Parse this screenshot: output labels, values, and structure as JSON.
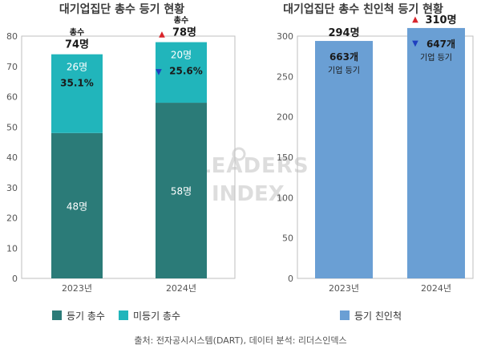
{
  "chart_data": [
    {
      "type": "bar",
      "stacked": true,
      "title": "대기업집단 총수 등기 현황",
      "categories": [
        "2023년",
        "2024년"
      ],
      "series": [
        {
          "name": "등기 총수",
          "values": [
            48,
            58
          ],
          "labels": [
            "48명",
            "58명"
          ],
          "color": "#2b7b78"
        },
        {
          "name": "미등기 총수",
          "values": [
            26,
            20
          ],
          "labels": [
            "26명",
            "20명"
          ],
          "color": "#21b5bb"
        }
      ],
      "totals": [
        {
          "prefix": "총수",
          "value": "74명",
          "trend": ""
        },
        {
          "prefix": "총수",
          "value": "78명",
          "trend": "▲"
        }
      ],
      "unregistered_share": [
        {
          "value": "35.1%",
          "trend": ""
        },
        {
          "value": "25.6%",
          "trend": "▼"
        }
      ],
      "ylim": [
        0,
        80
      ],
      "yticks": [
        0,
        10,
        20,
        30,
        40,
        50,
        60,
        70,
        80
      ],
      "grid": false,
      "legend_position": "bottom"
    },
    {
      "type": "bar",
      "title": "대기업집단 총수 친인척 등기 현황",
      "categories": [
        "2023년",
        "2024년"
      ],
      "series": [
        {
          "name": "등기 친인척",
          "values": [
            294,
            310
          ],
          "color": "#6a9fd4"
        }
      ],
      "value_labels": [
        {
          "value": "294명",
          "trend": ""
        },
        {
          "value": "310명",
          "trend": "▲"
        }
      ],
      "inner_labels": [
        {
          "count": "663개",
          "caption": "기업 등기",
          "trend": ""
        },
        {
          "count": "647개",
          "caption": "기업 등기",
          "trend": "▼"
        }
      ],
      "ylim": [
        0,
        300
      ],
      "yticks": [
        0,
        50,
        100,
        150,
        200,
        250,
        300
      ],
      "grid": false,
      "legend_position": "bottom"
    }
  ],
  "colors": {
    "up": "#d9242b",
    "down": "#1f3fbf",
    "axis_text": "#555555",
    "frame": "#bfbfbf"
  },
  "watermark": "LEADERS INDEX 리더스인덱스",
  "footer": "출처: 전자공시시스템(DART), 데이터 분석: 리더스인덱스"
}
